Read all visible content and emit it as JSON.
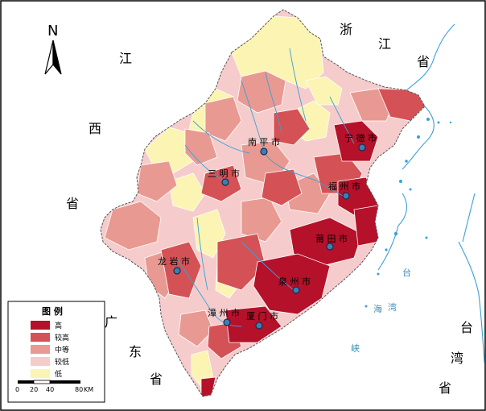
{
  "regions": {
    "zhejiang": [
      "浙",
      "江",
      "省"
    ],
    "jiangxi": [
      "江",
      "西",
      "省"
    ],
    "guangdong": [
      "广",
      "东",
      "省"
    ],
    "taiwan": [
      "台",
      "湾",
      "省"
    ]
  },
  "sea": {
    "strait": [
      "台",
      "湾",
      "海",
      "峡"
    ]
  },
  "cities": [
    {
      "id": "nanping",
      "name": "南 平 市"
    },
    {
      "id": "ningde",
      "name": "宁 德 市"
    },
    {
      "id": "sanming",
      "name": "三 明 市"
    },
    {
      "id": "fuzhou",
      "name": "福 州 市"
    },
    {
      "id": "putian",
      "name": "莆 田 市"
    },
    {
      "id": "longyan",
      "name": "龙 岩 市"
    },
    {
      "id": "quanzhou",
      "name": "泉 州 市"
    },
    {
      "id": "zhangzhou",
      "name": "漳 州 市"
    },
    {
      "id": "xiamen",
      "name": "厦 门 市"
    }
  ],
  "north_arrow": {
    "label": "N"
  },
  "legend": {
    "title": "图  例",
    "items": [
      {
        "label": "高",
        "color": "#b5112a"
      },
      {
        "label": "较高",
        "color": "#d45255"
      },
      {
        "label": "中等",
        "color": "#e89a92"
      },
      {
        "label": "较低",
        "color": "#f5cccb"
      },
      {
        "label": "低",
        "color": "#fbf4b2"
      }
    ]
  },
  "scale": {
    "ticks": [
      "0",
      "20",
      "40",
      "80"
    ],
    "unit": "KM"
  },
  "colors": {
    "water": "#3aa0d8",
    "county_border": "#ffffff",
    "frame": "#000000"
  }
}
